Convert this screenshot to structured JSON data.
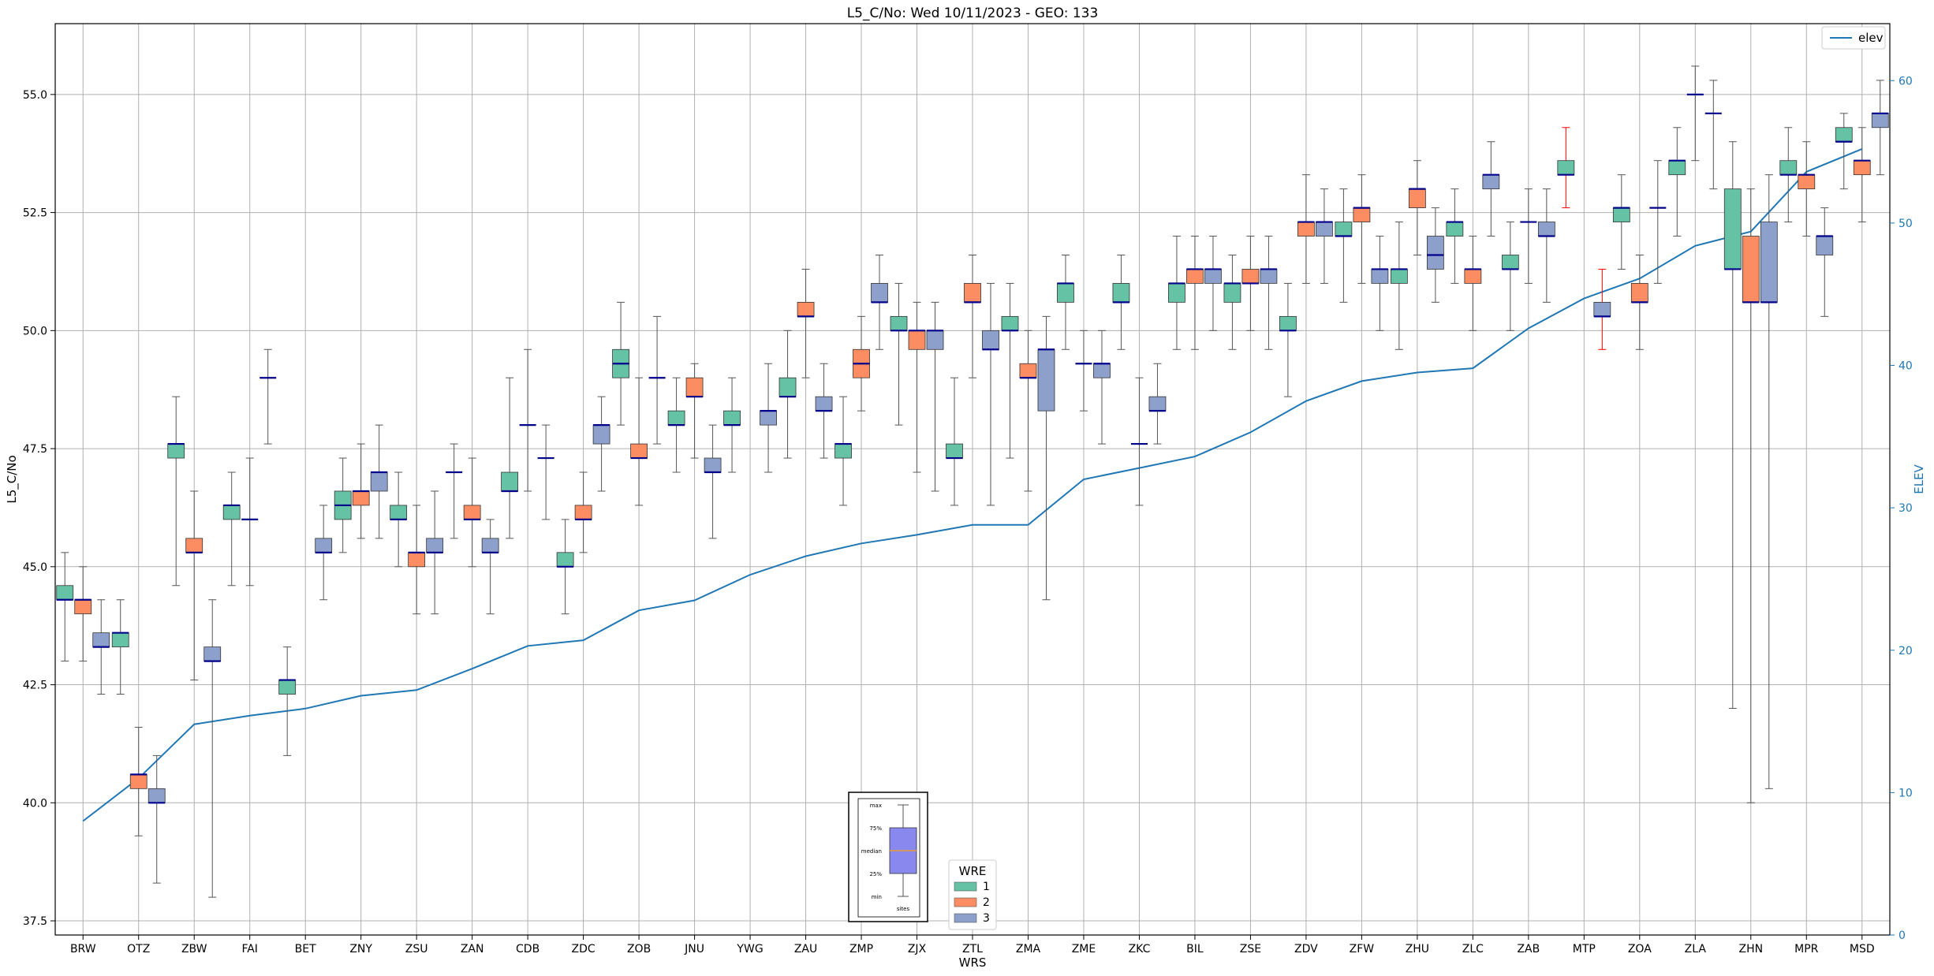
{
  "chart_data": {
    "type": "box",
    "title": "L5_C/No: Wed 10/11/2023 - GEO: 133",
    "xlabel": "WRS",
    "ylabel": "L5_C/No",
    "y2label": "ELEV",
    "ylim": [
      37.2,
      56.5
    ],
    "y2lim": [
      0,
      64
    ],
    "yticks": [
      37.5,
      40.0,
      42.5,
      45.0,
      47.5,
      50.0,
      52.5,
      55.0
    ],
    "y2ticks": [
      0,
      10,
      20,
      30,
      40,
      50,
      60
    ],
    "grid": true,
    "categories": [
      "BRW",
      "OTZ",
      "ZBW",
      "FAI",
      "BET",
      "ZNY",
      "ZSU",
      "ZAN",
      "CDB",
      "ZDC",
      "ZOB",
      "JNU",
      "YWG",
      "ZAU",
      "ZMP",
      "ZJX",
      "ZTL",
      "ZMA",
      "ZME",
      "ZKC",
      "BIL",
      "ZSE",
      "ZDV",
      "ZFW",
      "ZHU",
      "ZLC",
      "ZAB",
      "MTP",
      "ZOA",
      "ZLA",
      "ZHN",
      "MPR",
      "MSD"
    ],
    "wre_colors": {
      "1": "#66c2a5",
      "2": "#fc8d62",
      "3": "#8da0cb"
    },
    "median_color": "#00008b",
    "elev_color": "#1f77b4",
    "legend_line": {
      "label": "elev",
      "loc": "upper right"
    },
    "legend_wre": {
      "title": "WRE",
      "labels": [
        "1",
        "2",
        "3"
      ],
      "loc": "lower center"
    },
    "key_box": {
      "labels": [
        "max",
        "75%",
        "median",
        "25%",
        "min"
      ],
      "xlabel": "sites"
    },
    "elev": [
      8,
      11,
      14.8,
      15.4,
      15.9,
      16.8,
      17.2,
      18.7,
      20.3,
      20.7,
      22.8,
      23.5,
      25.3,
      26.6,
      27.5,
      28.1,
      28.8,
      28.8,
      32,
      32.8,
      33.6,
      35.3,
      37.5,
      38.9,
      39.5,
      39.8,
      42.6,
      44.7,
      46.1,
      48.4,
      49.4,
      53.6,
      55.2
    ],
    "boxes": [
      {
        "site": "BRW",
        "wre": 1,
        "min": 43.0,
        "q1": 44.3,
        "med": 44.3,
        "q3": 44.6,
        "max": 45.3
      },
      {
        "site": "BRW",
        "wre": 2,
        "min": 43.0,
        "q1": 44.0,
        "med": 44.3,
        "q3": 44.3,
        "max": 45.0
      },
      {
        "site": "BRW",
        "wre": 3,
        "min": 42.3,
        "q1": 43.3,
        "med": 43.3,
        "q3": 43.6,
        "max": 44.3
      },
      {
        "site": "OTZ",
        "wre": 1,
        "min": 42.3,
        "q1": 43.3,
        "med": 43.6,
        "q3": 43.6,
        "max": 44.3
      },
      {
        "site": "OTZ",
        "wre": 2,
        "min": 39.3,
        "q1": 40.3,
        "med": 40.6,
        "q3": 40.6,
        "max": 41.6
      },
      {
        "site": "OTZ",
        "wre": 3,
        "min": 38.3,
        "q1": 40.0,
        "med": 40.0,
        "q3": 40.3,
        "max": 41.0
      },
      {
        "site": "ZBW",
        "wre": 1,
        "min": 44.6,
        "q1": 47.3,
        "med": 47.6,
        "q3": 47.6,
        "max": 48.6
      },
      {
        "site": "ZBW",
        "wre": 2,
        "min": 42.6,
        "q1": 45.3,
        "med": 45.3,
        "q3": 45.6,
        "max": 46.6
      },
      {
        "site": "ZBW",
        "wre": 3,
        "min": 38.0,
        "q1": 43.0,
        "med": 43.0,
        "q3": 43.3,
        "max": 44.3
      },
      {
        "site": "FAI",
        "wre": 1,
        "min": 44.6,
        "q1": 46.0,
        "med": 46.3,
        "q3": 46.3,
        "max": 47.0
      },
      {
        "site": "FAI",
        "wre": 2,
        "min": 44.6,
        "q1": 46.0,
        "med": 46.0,
        "q3": 46.0,
        "max": 47.3
      },
      {
        "site": "FAI",
        "wre": 3,
        "min": 47.6,
        "q1": 49.0,
        "med": 49.0,
        "q3": 49.0,
        "max": 49.6
      },
      {
        "site": "BET",
        "wre": 1,
        "min": 41.0,
        "q1": 42.3,
        "med": 42.6,
        "q3": 42.6,
        "max": 43.3
      },
      {
        "site": "BET",
        "wre": 3,
        "min": 44.3,
        "q1": 45.3,
        "med": 45.3,
        "q3": 45.6,
        "max": 46.3
      },
      {
        "site": "ZNY",
        "wre": 1,
        "min": 45.3,
        "q1": 46.0,
        "med": 46.3,
        "q3": 46.6,
        "max": 47.3
      },
      {
        "site": "ZNY",
        "wre": 2,
        "min": 45.6,
        "q1": 46.3,
        "med": 46.6,
        "q3": 46.6,
        "max": 47.6
      },
      {
        "site": "ZNY",
        "wre": 3,
        "min": 45.6,
        "q1": 46.6,
        "med": 47.0,
        "q3": 47.0,
        "max": 48.0
      },
      {
        "site": "ZSU",
        "wre": 1,
        "min": 45.0,
        "q1": 46.0,
        "med": 46.0,
        "q3": 46.3,
        "max": 47.0
      },
      {
        "site": "ZSU",
        "wre": 2,
        "min": 44.0,
        "q1": 45.0,
        "med": 45.3,
        "q3": 45.3,
        "max": 46.3
      },
      {
        "site": "ZSU",
        "wre": 3,
        "min": 44.0,
        "q1": 45.3,
        "med": 45.3,
        "q3": 45.6,
        "max": 46.6
      },
      {
        "site": "ZAN",
        "wre": 1,
        "min": 45.6,
        "q1": 47.0,
        "med": 47.0,
        "q3": 47.0,
        "max": 47.6
      },
      {
        "site": "ZAN",
        "wre": 2,
        "min": 45.0,
        "q1": 46.0,
        "med": 46.0,
        "q3": 46.3,
        "max": 47.3
      },
      {
        "site": "ZAN",
        "wre": 3,
        "min": 44.0,
        "q1": 45.3,
        "med": 45.3,
        "q3": 45.6,
        "max": 46.0
      },
      {
        "site": "CDB",
        "wre": 1,
        "min": 45.6,
        "q1": 46.6,
        "med": 46.6,
        "q3": 47.0,
        "max": 49.0
      },
      {
        "site": "CDB",
        "wre": 2,
        "min": 46.6,
        "q1": 48.0,
        "med": 48.0,
        "q3": 48.0,
        "max": 49.6
      },
      {
        "site": "CDB",
        "wre": 3,
        "min": 46.0,
        "q1": 47.3,
        "med": 47.3,
        "q3": 47.3,
        "max": 48.0
      },
      {
        "site": "ZDC",
        "wre": 1,
        "min": 44.0,
        "q1": 45.0,
        "med": 45.0,
        "q3": 45.3,
        "max": 46.0
      },
      {
        "site": "ZDC",
        "wre": 2,
        "min": 45.3,
        "q1": 46.0,
        "med": 46.0,
        "q3": 46.3,
        "max": 47.0
      },
      {
        "site": "ZDC",
        "wre": 3,
        "min": 46.6,
        "q1": 47.6,
        "med": 48.0,
        "q3": 48.0,
        "max": 48.6
      },
      {
        "site": "ZOB",
        "wre": 1,
        "min": 48.0,
        "q1": 49.0,
        "med": 49.3,
        "q3": 49.6,
        "max": 50.6
      },
      {
        "site": "ZOB",
        "wre": 2,
        "min": 46.3,
        "q1": 47.3,
        "med": 47.3,
        "q3": 47.6,
        "max": 49.0
      },
      {
        "site": "ZOB",
        "wre": 3,
        "min": 47.6,
        "q1": 49.0,
        "med": 49.0,
        "q3": 49.0,
        "max": 50.3
      },
      {
        "site": "JNU",
        "wre": 1,
        "min": 47.0,
        "q1": 48.0,
        "med": 48.0,
        "q3": 48.3,
        "max": 49.0
      },
      {
        "site": "JNU",
        "wre": 2,
        "min": 47.3,
        "q1": 48.6,
        "med": 48.6,
        "q3": 49.0,
        "max": 49.3
      },
      {
        "site": "JNU",
        "wre": 3,
        "min": 45.6,
        "q1": 47.0,
        "med": 47.0,
        "q3": 47.3,
        "max": 48.0
      },
      {
        "site": "YWG",
        "wre": 1,
        "min": 47.0,
        "q1": 48.0,
        "med": 48.0,
        "q3": 48.3,
        "max": 49.0
      },
      {
        "site": "YWG",
        "wre": 3,
        "min": 47.0,
        "q1": 48.0,
        "med": 48.3,
        "q3": 48.3,
        "max": 49.3
      },
      {
        "site": "ZAU",
        "wre": 1,
        "min": 47.3,
        "q1": 48.6,
        "med": 48.6,
        "q3": 49.0,
        "max": 50.0
      },
      {
        "site": "ZAU",
        "wre": 2,
        "min": 49.0,
        "q1": 50.3,
        "med": 50.3,
        "q3": 50.6,
        "max": 51.3
      },
      {
        "site": "ZAU",
        "wre": 3,
        "min": 47.3,
        "q1": 48.3,
        "med": 48.3,
        "q3": 48.6,
        "max": 49.3
      },
      {
        "site": "ZMP",
        "wre": 1,
        "min": 46.3,
        "q1": 47.3,
        "med": 47.6,
        "q3": 47.6,
        "max": 48.6
      },
      {
        "site": "ZMP",
        "wre": 2,
        "min": 48.3,
        "q1": 49.0,
        "med": 49.3,
        "q3": 49.6,
        "max": 50.3
      },
      {
        "site": "ZMP",
        "wre": 3,
        "min": 49.6,
        "q1": 50.6,
        "med": 50.6,
        "q3": 51.0,
        "max": 51.6
      },
      {
        "site": "ZJX",
        "wre": 1,
        "min": 48.0,
        "q1": 50.0,
        "med": 50.0,
        "q3": 50.3,
        "max": 51.0
      },
      {
        "site": "ZJX",
        "wre": 2,
        "min": 47.0,
        "q1": 49.6,
        "med": 50.0,
        "q3": 50.0,
        "max": 50.6
      },
      {
        "site": "ZJX",
        "wre": 3,
        "min": 46.6,
        "q1": 49.6,
        "med": 50.0,
        "q3": 50.0,
        "max": 50.6
      },
      {
        "site": "ZTL",
        "wre": 1,
        "min": 46.3,
        "q1": 47.3,
        "med": 47.3,
        "q3": 47.6,
        "max": 49.0
      },
      {
        "site": "ZTL",
        "wre": 2,
        "min": 49.0,
        "q1": 50.6,
        "med": 50.6,
        "q3": 51.0,
        "max": 51.6
      },
      {
        "site": "ZTL",
        "wre": 3,
        "min": 46.3,
        "q1": 49.6,
        "med": 49.6,
        "q3": 50.0,
        "max": 51.0
      },
      {
        "site": "ZMA",
        "wre": 1,
        "min": 47.3,
        "q1": 50.0,
        "med": 50.0,
        "q3": 50.3,
        "max": 51.0
      },
      {
        "site": "ZMA",
        "wre": 2,
        "min": 46.6,
        "q1": 49.0,
        "med": 49.0,
        "q3": 49.3,
        "max": 50.0
      },
      {
        "site": "ZMA",
        "wre": 3,
        "min": 44.3,
        "q1": 48.3,
        "med": 49.6,
        "q3": 49.6,
        "max": 50.3
      },
      {
        "site": "ZME",
        "wre": 1,
        "min": 49.6,
        "q1": 50.6,
        "med": 51.0,
        "q3": 51.0,
        "max": 51.6
      },
      {
        "site": "ZME",
        "wre": 2,
        "min": 48.3,
        "q1": 49.3,
        "med": 49.3,
        "q3": 49.3,
        "max": 50.0
      },
      {
        "site": "ZME",
        "wre": 3,
        "min": 47.6,
        "q1": 49.0,
        "med": 49.3,
        "q3": 49.3,
        "max": 50.0
      },
      {
        "site": "ZKC",
        "wre": 1,
        "min": 49.6,
        "q1": 50.6,
        "med": 50.6,
        "q3": 51.0,
        "max": 51.6
      },
      {
        "site": "ZKC",
        "wre": 2,
        "min": 46.3,
        "q1": 47.6,
        "med": 47.6,
        "q3": 47.6,
        "max": 49.0
      },
      {
        "site": "ZKC",
        "wre": 3,
        "min": 47.6,
        "q1": 48.3,
        "med": 48.3,
        "q3": 48.6,
        "max": 49.3
      },
      {
        "site": "BIL",
        "wre": 1,
        "min": 49.6,
        "q1": 50.6,
        "med": 51.0,
        "q3": 51.0,
        "max": 52.0
      },
      {
        "site": "BIL",
        "wre": 2,
        "min": 49.6,
        "q1": 51.0,
        "med": 51.3,
        "q3": 51.3,
        "max": 52.0
      },
      {
        "site": "BIL",
        "wre": 3,
        "min": 50.0,
        "q1": 51.0,
        "med": 51.3,
        "q3": 51.3,
        "max": 52.0
      },
      {
        "site": "ZSE",
        "wre": 1,
        "min": 49.6,
        "q1": 50.6,
        "med": 51.0,
        "q3": 51.0,
        "max": 51.6
      },
      {
        "site": "ZSE",
        "wre": 2,
        "min": 50.0,
        "q1": 51.0,
        "med": 51.0,
        "q3": 51.3,
        "max": 52.0
      },
      {
        "site": "ZSE",
        "wre": 3,
        "min": 49.6,
        "q1": 51.0,
        "med": 51.3,
        "q3": 51.3,
        "max": 52.0
      },
      {
        "site": "ZDV",
        "wre": 1,
        "min": 48.6,
        "q1": 50.0,
        "med": 50.0,
        "q3": 50.3,
        "max": 51.0
      },
      {
        "site": "ZDV",
        "wre": 2,
        "min": 51.0,
        "q1": 52.0,
        "med": 52.3,
        "q3": 52.3,
        "max": 53.3
      },
      {
        "site": "ZDV",
        "wre": 3,
        "min": 51.0,
        "q1": 52.0,
        "med": 52.3,
        "q3": 52.3,
        "max": 53.0
      },
      {
        "site": "ZFW",
        "wre": 1,
        "min": 50.6,
        "q1": 52.0,
        "med": 52.0,
        "q3": 52.3,
        "max": 53.0
      },
      {
        "site": "ZFW",
        "wre": 2,
        "min": 51.0,
        "q1": 52.3,
        "med": 52.6,
        "q3": 52.6,
        "max": 53.3
      },
      {
        "site": "ZFW",
        "wre": 3,
        "min": 50.0,
        "q1": 51.0,
        "med": 51.3,
        "q3": 51.3,
        "max": 52.0
      },
      {
        "site": "ZHU",
        "wre": 1,
        "min": 49.6,
        "q1": 51.0,
        "med": 51.3,
        "q3": 51.3,
        "max": 52.3
      },
      {
        "site": "ZHU",
        "wre": 2,
        "min": 51.6,
        "q1": 52.6,
        "med": 53.0,
        "q3": 53.0,
        "max": 53.6
      },
      {
        "site": "ZHU",
        "wre": 3,
        "min": 50.6,
        "q1": 51.3,
        "med": 51.6,
        "q3": 52.0,
        "max": 52.6
      },
      {
        "site": "ZLC",
        "wre": 1,
        "min": 51.0,
        "q1": 52.0,
        "med": 52.3,
        "q3": 52.3,
        "max": 53.0
      },
      {
        "site": "ZLC",
        "wre": 2,
        "min": 50.0,
        "q1": 51.0,
        "med": 51.3,
        "q3": 51.3,
        "max": 52.0
      },
      {
        "site": "ZLC",
        "wre": 3,
        "min": 52.0,
        "q1": 53.0,
        "med": 53.3,
        "q3": 53.3,
        "max": 54.0
      },
      {
        "site": "ZAB",
        "wre": 1,
        "min": 50.0,
        "q1": 51.3,
        "med": 51.3,
        "q3": 51.6,
        "max": 52.3
      },
      {
        "site": "ZAB",
        "wre": 2,
        "min": 51.0,
        "q1": 52.3,
        "med": 52.3,
        "q3": 52.3,
        "max": 53.0
      },
      {
        "site": "ZAB",
        "wre": 3,
        "min": 50.6,
        "q1": 52.0,
        "med": 52.0,
        "q3": 52.3,
        "max": 53.0
      },
      {
        "site": "MTP",
        "wre": 1,
        "min": 52.6,
        "q1": 53.3,
        "med": 53.3,
        "q3": 53.6,
        "max": 54.3,
        "whisker": "#ff0000"
      },
      {
        "site": "MTP",
        "wre": 3,
        "min": 49.6,
        "q1": 50.3,
        "med": 50.3,
        "q3": 50.6,
        "max": 51.3,
        "whisker": "#ff0000"
      },
      {
        "site": "ZOA",
        "wre": 1,
        "min": 51.3,
        "q1": 52.3,
        "med": 52.6,
        "q3": 52.6,
        "max": 53.3
      },
      {
        "site": "ZOA",
        "wre": 2,
        "min": 49.6,
        "q1": 50.6,
        "med": 50.6,
        "q3": 51.0,
        "max": 51.6
      },
      {
        "site": "ZOA",
        "wre": 3,
        "min": 51.0,
        "q1": 52.6,
        "med": 52.6,
        "q3": 52.6,
        "max": 53.6
      },
      {
        "site": "ZLA",
        "wre": 1,
        "min": 52.0,
        "q1": 53.3,
        "med": 53.6,
        "q3": 53.6,
        "max": 54.3
      },
      {
        "site": "ZLA",
        "wre": 2,
        "min": 53.6,
        "q1": 55.0,
        "med": 55.0,
        "q3": 55.0,
        "max": 55.6
      },
      {
        "site": "ZLA",
        "wre": 3,
        "min": 53.0,
        "q1": 54.6,
        "med": 54.6,
        "q3": 54.6,
        "max": 55.3
      },
      {
        "site": "ZHN",
        "wre": 1,
        "min": 42.0,
        "q1": 51.3,
        "med": 51.3,
        "q3": 53.0,
        "max": 54.0
      },
      {
        "site": "ZHN",
        "wre": 2,
        "min": 40.0,
        "q1": 50.6,
        "med": 50.6,
        "q3": 52.0,
        "max": 53.0
      },
      {
        "site": "ZHN",
        "wre": 3,
        "min": 40.3,
        "q1": 50.6,
        "med": 50.6,
        "q3": 52.3,
        "max": 53.3
      },
      {
        "site": "MPR",
        "wre": 1,
        "min": 52.3,
        "q1": 53.3,
        "med": 53.3,
        "q3": 53.6,
        "max": 54.3
      },
      {
        "site": "MPR",
        "wre": 2,
        "min": 52.0,
        "q1": 53.0,
        "med": 53.3,
        "q3": 53.3,
        "max": 54.0
      },
      {
        "site": "MPR",
        "wre": 3,
        "min": 50.3,
        "q1": 51.6,
        "med": 52.0,
        "q3": 52.0,
        "max": 52.6
      },
      {
        "site": "MSD",
        "wre": 1,
        "min": 53.0,
        "q1": 54.0,
        "med": 54.0,
        "q3": 54.3,
        "max": 54.6
      },
      {
        "site": "MSD",
        "wre": 2,
        "min": 52.3,
        "q1": 53.3,
        "med": 53.6,
        "q3": 53.6,
        "max": 54.3
      },
      {
        "site": "MSD",
        "wre": 3,
        "min": 53.3,
        "q1": 54.3,
        "med": 54.6,
        "q3": 54.6,
        "max": 55.3
      }
    ]
  }
}
